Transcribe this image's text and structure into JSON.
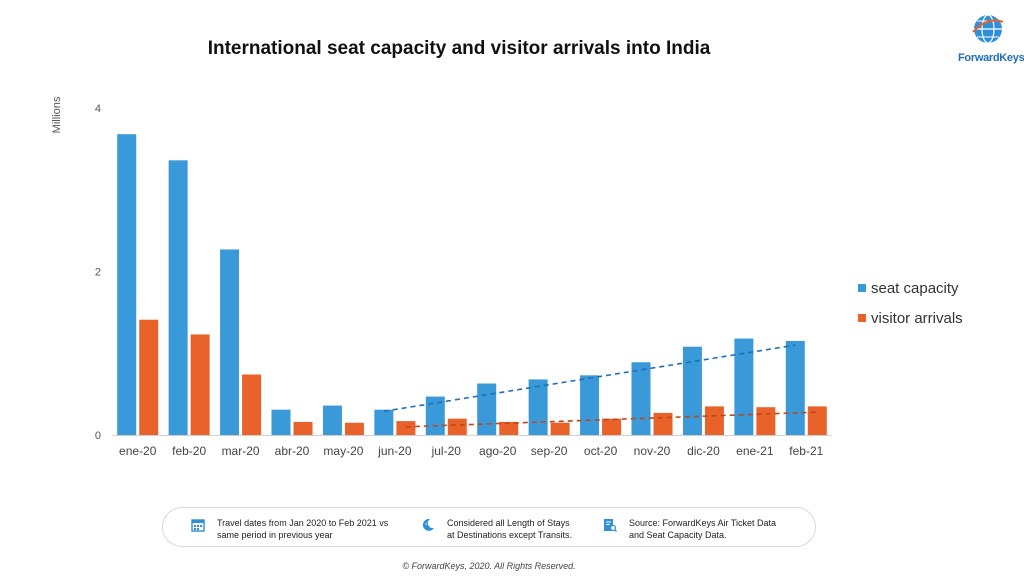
{
  "chart_data": {
    "type": "bar",
    "title": "International seat capacity and visitor arrivals into India",
    "ylabel": "Millions",
    "xlabel": "",
    "ylim": [
      0,
      4
    ],
    "yticks": [
      0,
      2,
      4
    ],
    "categories": [
      "ene-20",
      "feb-20",
      "mar-20",
      "abr-20",
      "may-20",
      "jun-20",
      "jul-20",
      "ago-20",
      "sep-20",
      "oct-20",
      "nov-20",
      "dic-20",
      "ene-21",
      "feb-21"
    ],
    "series": [
      {
        "name": "seat capacity",
        "color": "#3a9ad9",
        "values": [
          3.68,
          3.36,
          2.27,
          0.31,
          0.36,
          0.31,
          0.47,
          0.63,
          0.68,
          0.73,
          0.89,
          1.08,
          1.18,
          1.15
        ]
      },
      {
        "name": "visitor arrivals",
        "color": "#e9622a",
        "values": [
          1.41,
          1.23,
          0.74,
          0.16,
          0.15,
          0.17,
          0.2,
          0.16,
          0.15,
          0.2,
          0.27,
          0.35,
          0.34,
          0.35
        ]
      }
    ],
    "trendlines": [
      {
        "series": "seat capacity",
        "from": "jun-20",
        "to": "feb-21",
        "start": 0.29,
        "end": 1.1,
        "style": "dashed"
      },
      {
        "series": "visitor arrivals",
        "from": "jun-20",
        "to": "feb-21",
        "start": 0.1,
        "end": 0.28,
        "style": "dashed"
      }
    ],
    "legend": "right",
    "grid": false
  },
  "logo": {
    "text": "ForwardKeys",
    "color": "#1f6fb5"
  },
  "footer": {
    "notes": [
      {
        "icon": "calendar-icon",
        "text": "Travel dates from Jan 2020 to Feb 2021 vs\nsame period in previous year"
      },
      {
        "icon": "moon-icon",
        "text": "Considered all Length of Stays\nat Destinations except Transits."
      },
      {
        "icon": "search-document-icon",
        "text": "Source: ForwardKeys Air Ticket Data\nand Seat Capacity Data."
      }
    ],
    "icon_color": "#2f8fd8"
  },
  "copyright": "© ForwardKeys, 2020. All Rights Reserved."
}
